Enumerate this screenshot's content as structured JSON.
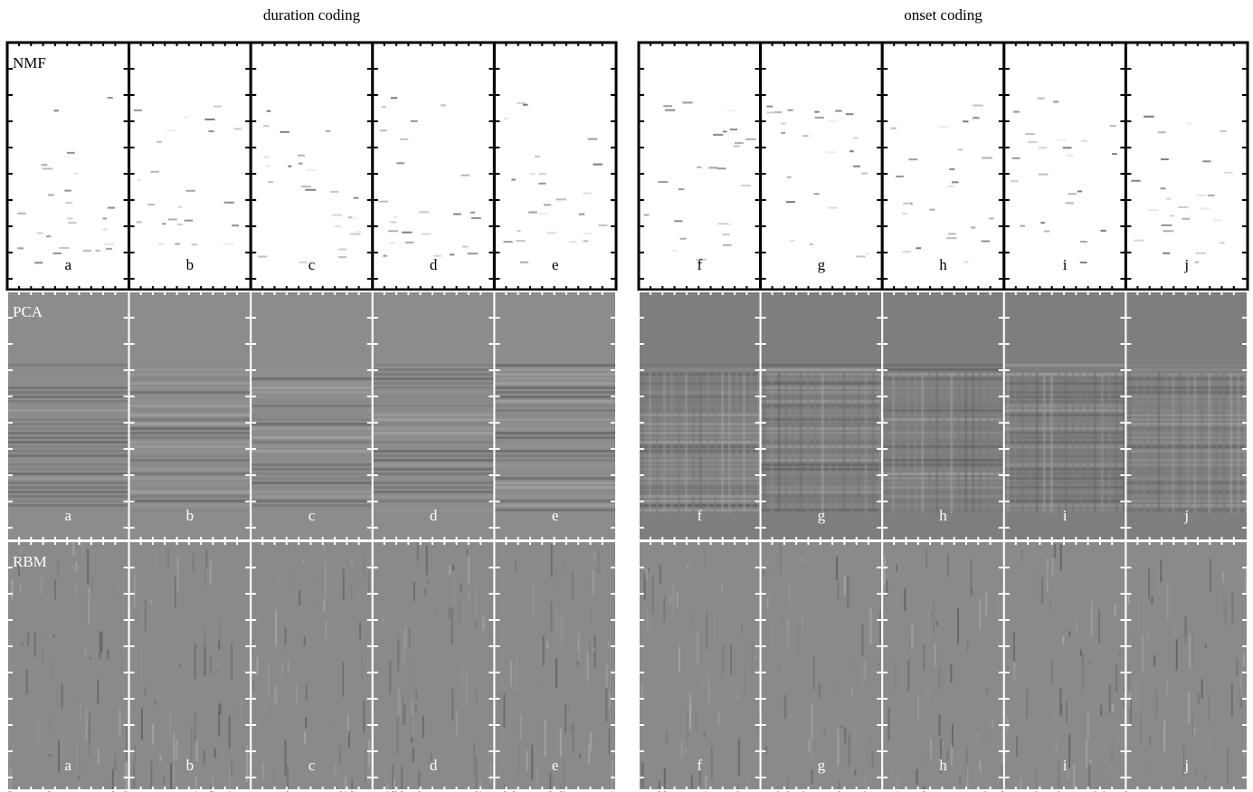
{
  "groups": [
    {
      "title": "duration coding",
      "panels": [
        "a",
        "b",
        "c",
        "d",
        "e"
      ]
    },
    {
      "title": "onset coding",
      "panels": [
        "f",
        "g",
        "h",
        "i",
        "j"
      ]
    }
  ],
  "rows": [
    {
      "label": "NMF"
    },
    {
      "label": "PCA"
    },
    {
      "label": "RBM"
    }
  ]
}
